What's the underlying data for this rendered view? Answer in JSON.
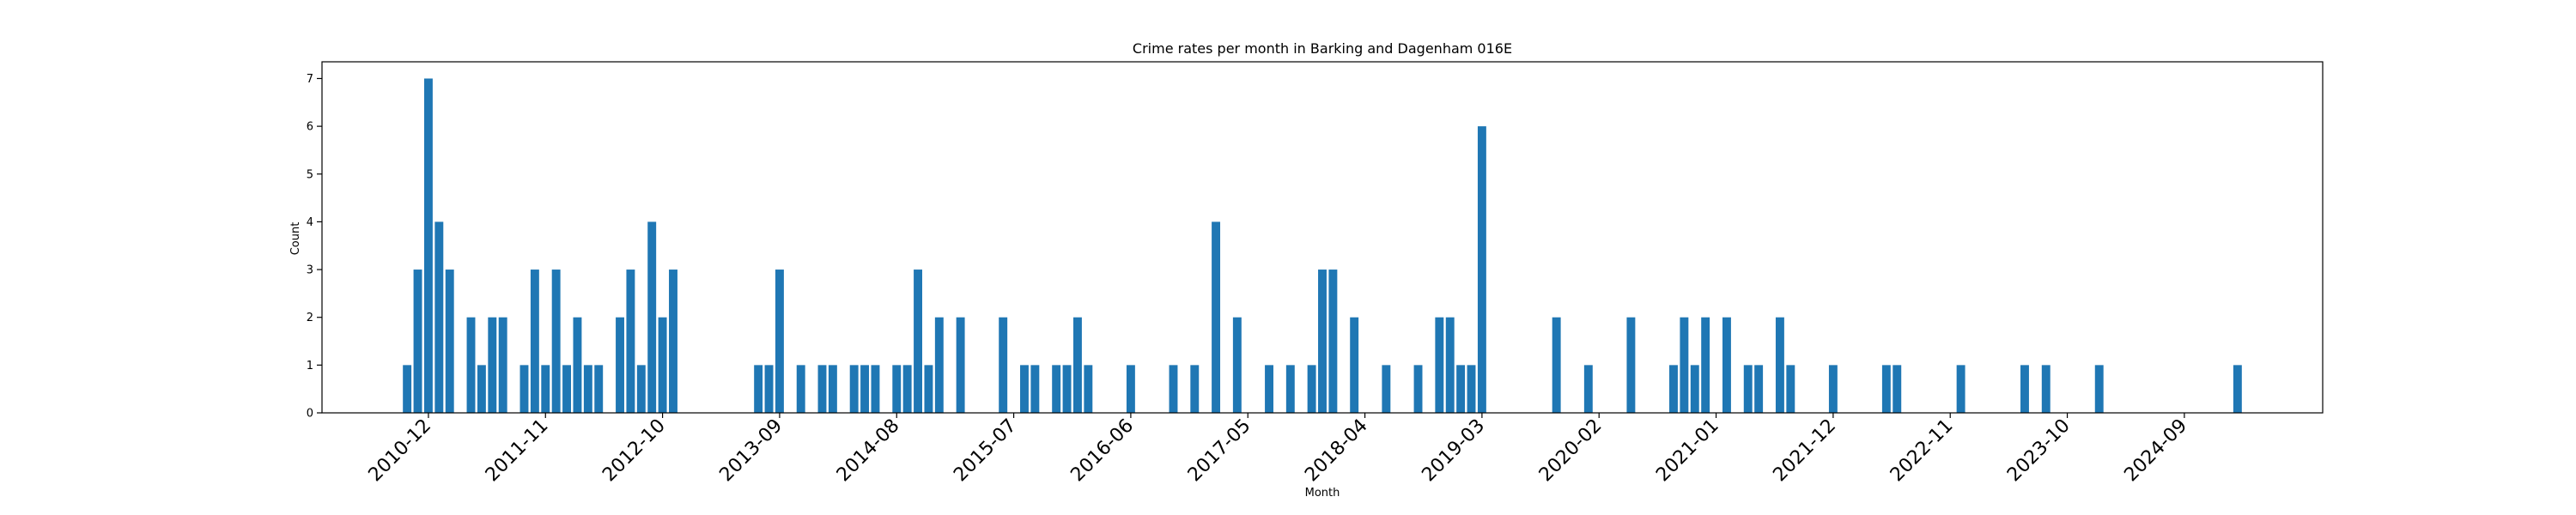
{
  "chart_data": {
    "type": "bar",
    "title": "Crime rates per month in Barking and Dagenham 016E",
    "xlabel": "Month",
    "ylabel": "Count",
    "ylim": [
      0,
      7.35
    ],
    "yticks": [
      0,
      1,
      2,
      3,
      4,
      5,
      6,
      7
    ],
    "xlim": [
      "2010-02",
      "2025-10"
    ],
    "xtick_labels": [
      "2010-12",
      "2011-11",
      "2012-10",
      "2013-09",
      "2014-08",
      "2015-07",
      "2016-06",
      "2017-05",
      "2018-04",
      "2019-03",
      "2020-02",
      "2021-01",
      "2021-12",
      "2022-11",
      "2023-10",
      "2024-09"
    ],
    "bar_color": "#1f77b4",
    "grid": false,
    "series": [
      {
        "x": [
          "2010-10",
          "2010-11",
          "2010-12",
          "2011-01",
          "2011-02",
          "2011-04",
          "2011-05",
          "2011-06",
          "2011-07",
          "2011-09",
          "2011-10",
          "2011-11",
          "2011-12",
          "2012-01",
          "2012-02",
          "2012-03",
          "2012-04",
          "2012-06",
          "2012-07",
          "2012-08",
          "2012-09",
          "2012-10",
          "2012-11",
          "2013-07",
          "2013-08",
          "2013-09",
          "2013-11",
          "2014-01",
          "2014-02",
          "2014-04",
          "2014-05",
          "2014-06",
          "2014-08",
          "2014-09",
          "2014-10",
          "2014-11",
          "2014-12",
          "2015-02",
          "2015-06",
          "2015-08",
          "2015-09",
          "2015-11",
          "2015-12",
          "2016-01",
          "2016-02",
          "2016-06",
          "2016-10",
          "2016-12",
          "2017-02",
          "2017-04",
          "2017-07",
          "2017-09",
          "2017-11",
          "2017-12",
          "2018-01",
          "2018-03",
          "2018-06",
          "2018-09",
          "2018-11",
          "2018-12",
          "2019-01",
          "2019-02",
          "2019-03",
          "2019-10",
          "2020-01",
          "2020-05",
          "2020-09",
          "2020-10",
          "2020-11",
          "2020-12",
          "2021-02",
          "2021-04",
          "2021-05",
          "2021-07",
          "2021-08",
          "2021-12",
          "2022-05",
          "2022-06",
          "2022-12",
          "2023-06",
          "2023-08",
          "2024-01",
          "2025-02"
        ],
        "values": [
          1,
          3,
          7,
          4,
          3,
          2,
          1,
          2,
          2,
          1,
          3,
          1,
          3,
          1,
          2,
          1,
          1,
          2,
          3,
          1,
          4,
          2,
          3,
          1,
          1,
          3,
          1,
          1,
          1,
          1,
          1,
          1,
          1,
          1,
          3,
          1,
          2,
          2,
          2,
          1,
          1,
          1,
          1,
          2,
          1,
          1,
          1,
          1,
          4,
          2,
          1,
          1,
          1,
          3,
          3,
          2,
          1,
          1,
          2,
          2,
          1,
          1,
          6,
          2,
          1,
          2,
          1,
          2,
          1,
          2,
          2,
          1,
          1,
          2,
          1,
          1,
          1,
          1,
          1,
          1,
          1,
          1,
          1
        ]
      }
    ]
  }
}
